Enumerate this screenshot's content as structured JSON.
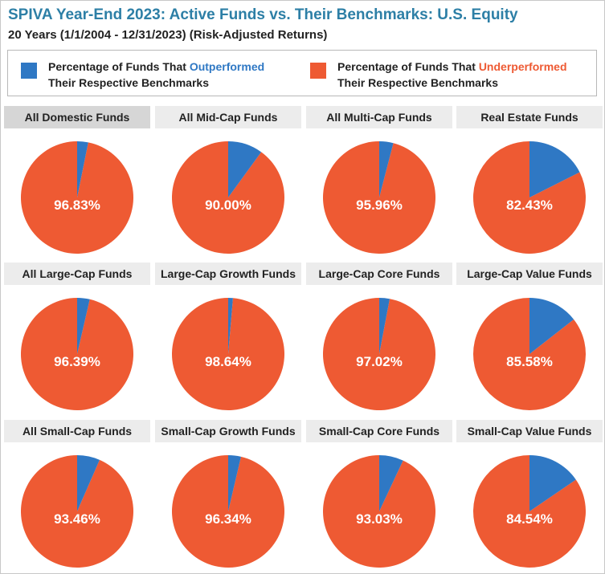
{
  "title": "SPIVA Year-End 2023: Active Funds vs. Their Benchmarks: U.S. Equity",
  "subtitle": "20 Years (1/1/2004 - 12/31/2023) (Risk-Adjusted Returns)",
  "legend": {
    "outperformed": {
      "prefix": "Percentage of Funds That ",
      "highlight": "Outperformed",
      "line2": "Their Respective Benchmarks",
      "color": "#2f78c4"
    },
    "underperformed": {
      "prefix": "Percentage of Funds That ",
      "highlight": "Underperformed",
      "line2": "Their Respective Benchmarks",
      "color": "#ee5a33"
    }
  },
  "colors": {
    "outperformed": "#2f78c4",
    "underperformed": "#ee5a33",
    "label": "#ffffff"
  },
  "chart_data": [
    {
      "type": "pie",
      "title": "All Domestic Funds",
      "series": [
        {
          "name": "Outperformed",
          "value": 3.17
        },
        {
          "name": "Underperformed",
          "value": 96.83
        }
      ],
      "label": "96.83%"
    },
    {
      "type": "pie",
      "title": "All Mid-Cap Funds",
      "series": [
        {
          "name": "Outperformed",
          "value": 10.0
        },
        {
          "name": "Underperformed",
          "value": 90.0
        }
      ],
      "label": "90.00%"
    },
    {
      "type": "pie",
      "title": "All Multi-Cap Funds",
      "series": [
        {
          "name": "Outperformed",
          "value": 4.04
        },
        {
          "name": "Underperformed",
          "value": 95.96
        }
      ],
      "label": "95.96%"
    },
    {
      "type": "pie",
      "title": "Real Estate Funds",
      "series": [
        {
          "name": "Outperformed",
          "value": 17.57
        },
        {
          "name": "Underperformed",
          "value": 82.43
        }
      ],
      "label": "82.43%"
    },
    {
      "type": "pie",
      "title": "All Large-Cap Funds",
      "series": [
        {
          "name": "Outperformed",
          "value": 3.61
        },
        {
          "name": "Underperformed",
          "value": 96.39
        }
      ],
      "label": "96.39%"
    },
    {
      "type": "pie",
      "title": "Large-Cap Growth Funds",
      "series": [
        {
          "name": "Outperformed",
          "value": 1.36
        },
        {
          "name": "Underperformed",
          "value": 98.64
        }
      ],
      "label": "98.64%"
    },
    {
      "type": "pie",
      "title": "Large-Cap Core Funds",
      "series": [
        {
          "name": "Outperformed",
          "value": 2.98
        },
        {
          "name": "Underperformed",
          "value": 97.02
        }
      ],
      "label": "97.02%"
    },
    {
      "type": "pie",
      "title": "Large-Cap Value Funds",
      "series": [
        {
          "name": "Outperformed",
          "value": 14.42
        },
        {
          "name": "Underperformed",
          "value": 85.58
        }
      ],
      "label": "85.58%"
    },
    {
      "type": "pie",
      "title": "All Small-Cap Funds",
      "series": [
        {
          "name": "Outperformed",
          "value": 6.54
        },
        {
          "name": "Underperformed",
          "value": 93.46
        }
      ],
      "label": "93.46%"
    },
    {
      "type": "pie",
      "title": "Small-Cap Growth Funds",
      "series": [
        {
          "name": "Outperformed",
          "value": 3.66
        },
        {
          "name": "Underperformed",
          "value": 96.34
        }
      ],
      "label": "96.34%"
    },
    {
      "type": "pie",
      "title": "Small-Cap Core Funds",
      "series": [
        {
          "name": "Outperformed",
          "value": 6.97
        },
        {
          "name": "Underperformed",
          "value": 93.03
        }
      ],
      "label": "93.03%"
    },
    {
      "type": "pie",
      "title": "Small-Cap Value Funds",
      "series": [
        {
          "name": "Outperformed",
          "value": 15.46
        },
        {
          "name": "Underperformed",
          "value": 84.54
        }
      ],
      "label": "84.54%"
    }
  ]
}
